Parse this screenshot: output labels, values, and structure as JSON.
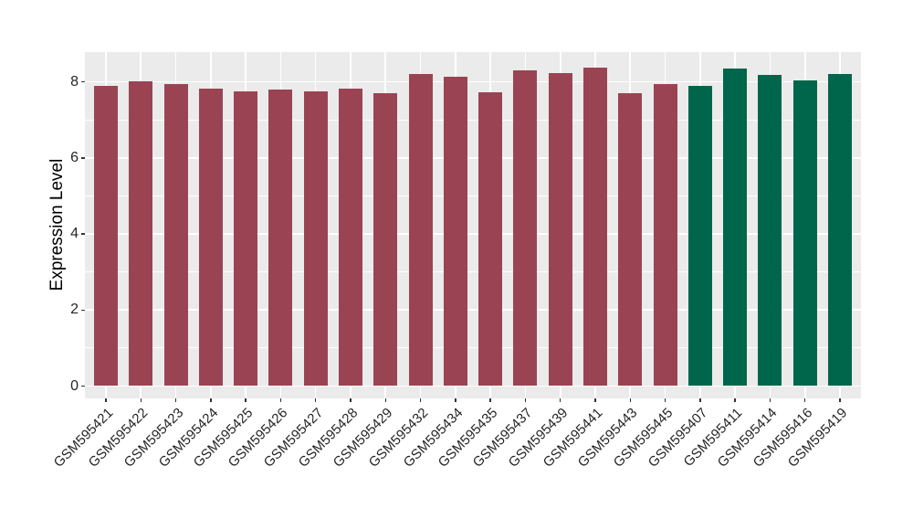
{
  "figure": {
    "background": "#FFFFFF",
    "panel_background": "#EBEBEB",
    "gridline_color": "#FFFFFF",
    "tick_mark_color": "#333333",
    "axis_text_color": "#262626",
    "axis_title_color": "#000000"
  },
  "chart_data": {
    "type": "bar",
    "title": "",
    "xlabel": "",
    "ylabel": "Expression Level",
    "ylim": [
      0,
      8.8
    ],
    "yticks": [
      0,
      2,
      4,
      6,
      8
    ],
    "y_minor_gridlines": [
      1,
      3,
      5,
      7
    ],
    "grid": "on",
    "legend_position": "none",
    "categories": [
      "GSM595421",
      "GSM595422",
      "GSM595423",
      "GSM595424",
      "GSM595425",
      "GSM595426",
      "GSM595427",
      "GSM595428",
      "GSM595429",
      "GSM595432",
      "GSM595434",
      "GSM595435",
      "GSM595437",
      "GSM595439",
      "GSM595441",
      "GSM595443",
      "GSM595445",
      "GSM595407",
      "GSM595411",
      "GSM595414",
      "GSM595416",
      "GSM595419"
    ],
    "values": [
      7.88,
      8.02,
      7.94,
      7.82,
      7.74,
      7.79,
      7.74,
      7.81,
      7.7,
      8.21,
      8.13,
      7.73,
      8.31,
      8.23,
      8.38,
      7.69,
      7.94,
      7.88,
      8.36,
      8.18,
      8.04,
      8.2
    ],
    "groups": [
      0,
      0,
      0,
      0,
      0,
      0,
      0,
      0,
      0,
      0,
      0,
      0,
      0,
      0,
      0,
      0,
      0,
      1,
      1,
      1,
      1,
      1
    ],
    "group_colors": [
      "#9A4453",
      "#00664B"
    ]
  }
}
